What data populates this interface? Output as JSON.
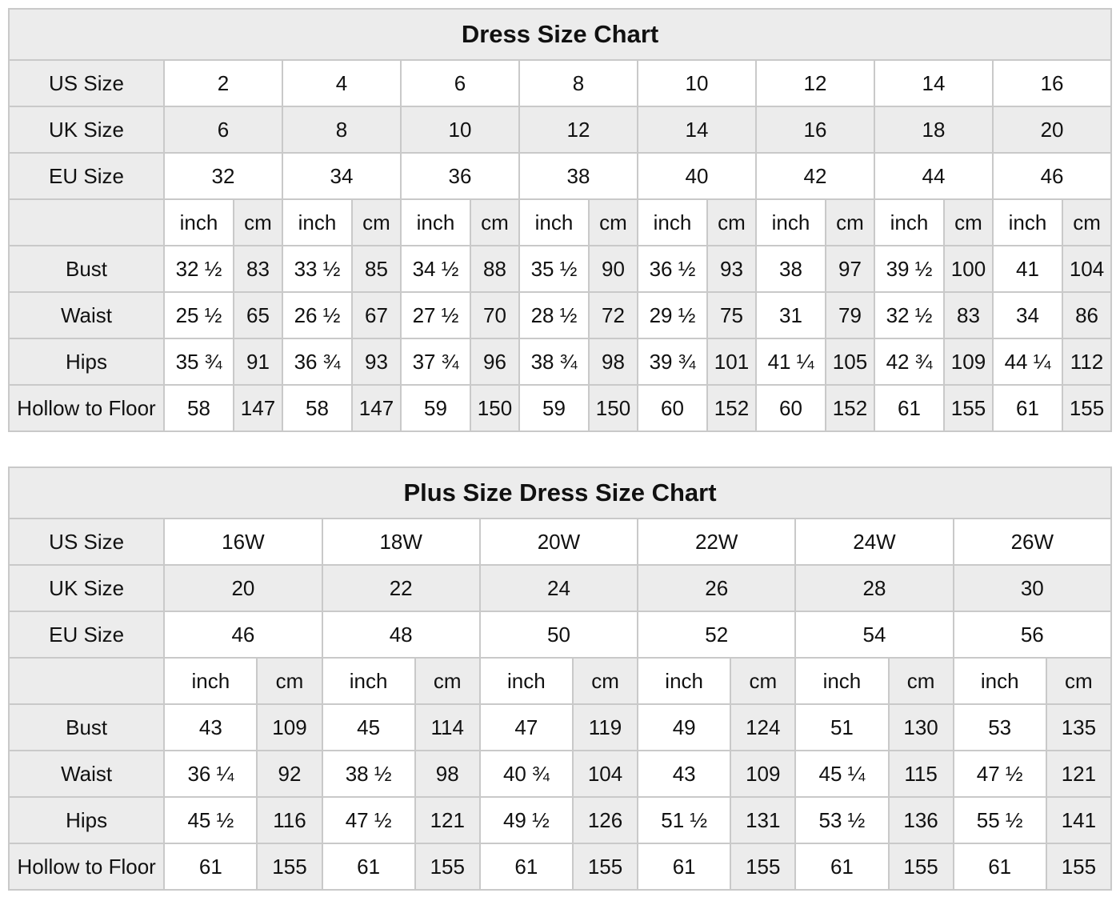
{
  "colors": {
    "shaded_cell": "#ececec",
    "border": "#c9c9c9",
    "text": "#111111",
    "cell_bg": "#ffffff",
    "page_bg": "#ffffff"
  },
  "chart_data": [
    {
      "type": "table",
      "title": "Dress Size Chart",
      "units": {
        "inch": "inch",
        "cm": "cm"
      },
      "size_rows": [
        {
          "label": "US Size",
          "values": [
            "2",
            "4",
            "6",
            "8",
            "10",
            "12",
            "14",
            "16"
          ]
        },
        {
          "label": "UK Size",
          "values": [
            "6",
            "8",
            "10",
            "12",
            "14",
            "16",
            "18",
            "20"
          ]
        },
        {
          "label": "EU Size",
          "values": [
            "32",
            "34",
            "36",
            "38",
            "40",
            "42",
            "44",
            "46"
          ]
        }
      ],
      "measurement_rows": [
        {
          "label": "Bust",
          "inch": [
            "32 ½",
            "33 ½",
            "34 ½",
            "35 ½",
            "36 ½",
            "38",
            "39 ½",
            "41"
          ],
          "cm": [
            "83",
            "85",
            "88",
            "90",
            "93",
            "97",
            "100",
            "104"
          ]
        },
        {
          "label": "Waist",
          "inch": [
            "25 ½",
            "26 ½",
            "27 ½",
            "28 ½",
            "29 ½",
            "31",
            "32 ½",
            "34"
          ],
          "cm": [
            "65",
            "67",
            "70",
            "72",
            "75",
            "79",
            "83",
            "86"
          ]
        },
        {
          "label": "Hips",
          "inch": [
            "35 ¾",
            "36 ¾",
            "37 ¾",
            "38 ¾",
            "39 ¾",
            "41 ¼",
            "42 ¾",
            "44 ¼"
          ],
          "cm": [
            "91",
            "93",
            "96",
            "98",
            "101",
            "105",
            "109",
            "112"
          ]
        },
        {
          "label": "Hollow to Floor",
          "inch": [
            "58",
            "58",
            "59",
            "59",
            "60",
            "60",
            "61",
            "61"
          ],
          "cm": [
            "147",
            "147",
            "150",
            "150",
            "152",
            "152",
            "155",
            "155"
          ]
        }
      ]
    },
    {
      "type": "table",
      "title": "Plus Size Dress Size Chart",
      "units": {
        "inch": "inch",
        "cm": "cm"
      },
      "size_rows": [
        {
          "label": "US Size",
          "values": [
            "16W",
            "18W",
            "20W",
            "22W",
            "24W",
            "26W"
          ]
        },
        {
          "label": "UK Size",
          "values": [
            "20",
            "22",
            "24",
            "26",
            "28",
            "30"
          ]
        },
        {
          "label": "EU Size",
          "values": [
            "46",
            "48",
            "50",
            "52",
            "54",
            "56"
          ]
        }
      ],
      "measurement_rows": [
        {
          "label": "Bust",
          "inch": [
            "43",
            "45",
            "47",
            "49",
            "51",
            "53"
          ],
          "cm": [
            "109",
            "114",
            "119",
            "124",
            "130",
            "135"
          ]
        },
        {
          "label": "Waist",
          "inch": [
            "36 ¼",
            "38 ½",
            "40 ¾",
            "43",
            "45 ¼",
            "47 ½"
          ],
          "cm": [
            "92",
            "98",
            "104",
            "109",
            "115",
            "121"
          ]
        },
        {
          "label": "Hips",
          "inch": [
            "45 ½",
            "47 ½",
            "49 ½",
            "51 ½",
            "53 ½",
            "55 ½"
          ],
          "cm": [
            "116",
            "121",
            "126",
            "131",
            "136",
            "141"
          ]
        },
        {
          "label": "Hollow to Floor",
          "inch": [
            "61",
            "61",
            "61",
            "61",
            "61",
            "61"
          ],
          "cm": [
            "155",
            "155",
            "155",
            "155",
            "155",
            "155"
          ]
        }
      ]
    }
  ]
}
